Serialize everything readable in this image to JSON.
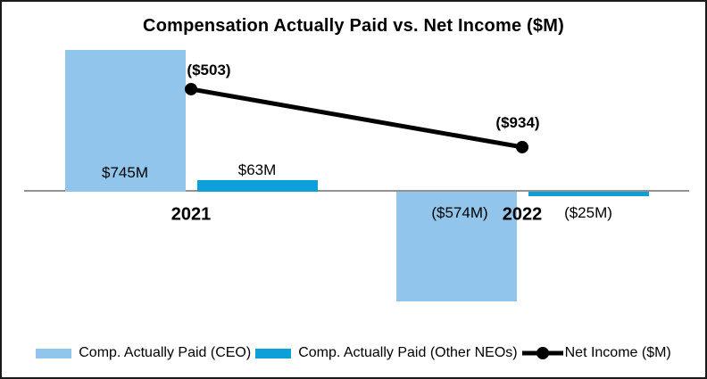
{
  "chart_data": {
    "type": "bar+line",
    "title": "Compensation Actually Paid vs. Net Income ($M)",
    "categories": [
      "2021",
      "2022"
    ],
    "series": [
      {
        "name": "Comp. Actually Paid (CEO)",
        "type": "bar",
        "values": [
          745,
          -574
        ],
        "labels": [
          "$745M",
          "($574M)"
        ]
      },
      {
        "name": "Comp. Actually Paid (Other NEOs)",
        "type": "bar",
        "values": [
          63,
          -25
        ],
        "labels": [
          "$63M",
          "($25M)"
        ]
      },
      {
        "name": "Net Income ($M)",
        "type": "line",
        "values": [
          -503,
          -934
        ],
        "labels": [
          "($503)",
          "($934)"
        ]
      }
    ],
    "units": "$M",
    "legend_position": "bottom",
    "x_axis": {
      "baseline_visible": true,
      "tick_labels": [
        "2021",
        "2022"
      ]
    },
    "y_axis": {
      "visible": false
    },
    "y2_axis": {
      "visible": false
    }
  },
  "colors": {
    "ceo_bar": "#92C5EB",
    "neo_bar": "#0C9FD8",
    "net_income_line": "#000000",
    "axis_line": "#929292",
    "text": "#000000"
  }
}
